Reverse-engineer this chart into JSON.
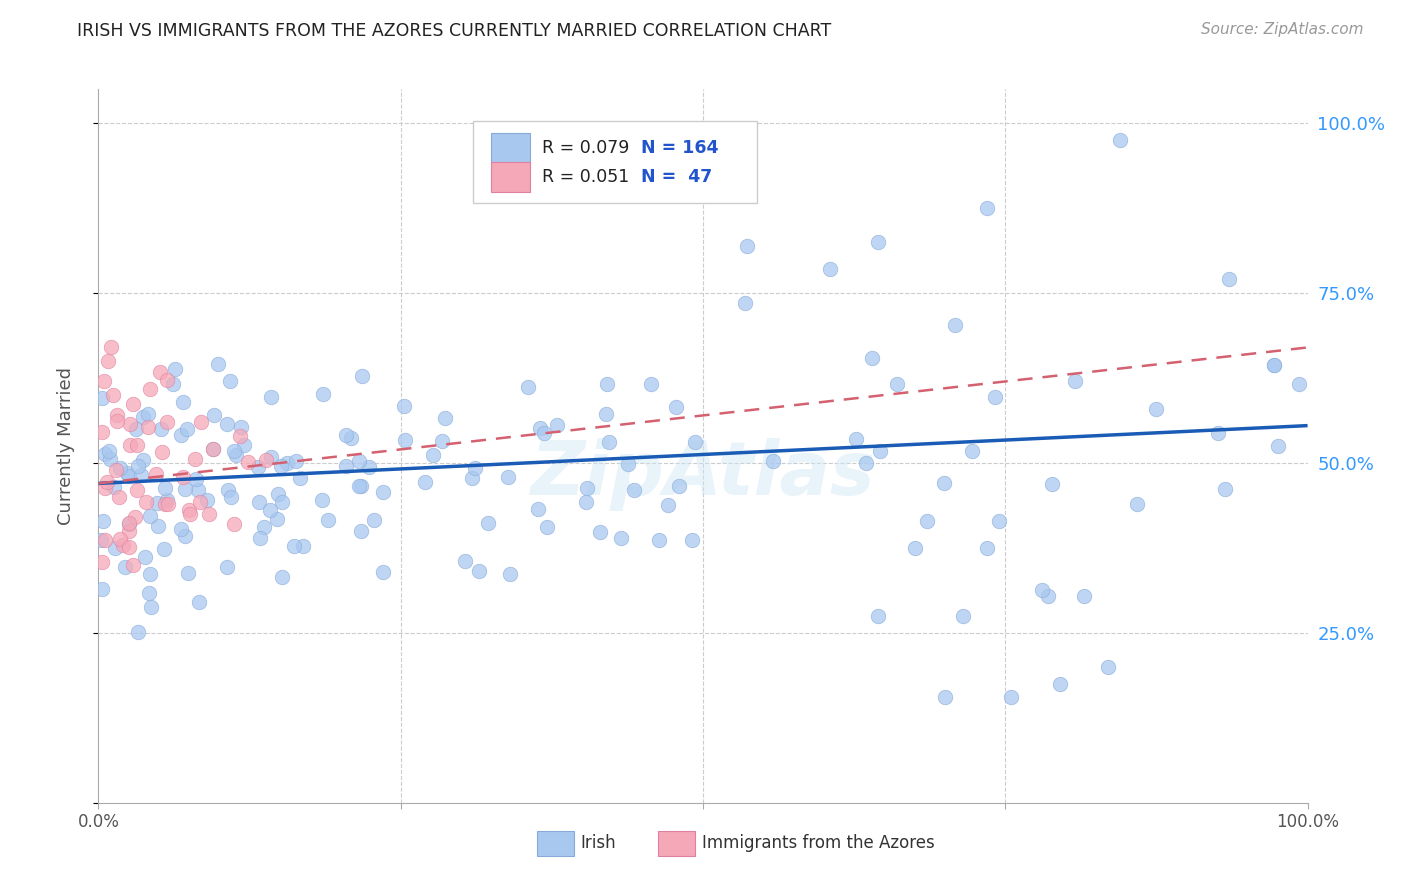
{
  "title": "IRISH VS IMMIGRANTS FROM THE AZORES CURRENTLY MARRIED CORRELATION CHART",
  "source": "Source: ZipAtlas.com",
  "ylabel": "Currently Married",
  "watermark": "ZipAtlas",
  "xlim": [
    0.0,
    1.0
  ],
  "ylim": [
    0.0,
    1.05
  ],
  "legend_irish_R": "0.079",
  "legend_irish_N": "164",
  "legend_azores_R": "0.051",
  "legend_azores_N": " 47",
  "irish_color": "#a8c8f0",
  "azores_color": "#f5a8b8",
  "irish_line_color": "#1a5cb5",
  "azores_line_color": "#d46070",
  "legend_text_color": "#222222",
  "legend_N_color": "#2255cc",
  "background_color": "#ffffff",
  "grid_color": "#cccccc",
  "title_color": "#222222",
  "right_tick_color": "#3399ff",
  "ytick_positions": [
    0.25,
    0.5,
    0.75,
    1.0
  ],
  "ytick_labels": [
    "25.0%",
    "50.0%",
    "75.0%",
    "100.0%"
  ]
}
